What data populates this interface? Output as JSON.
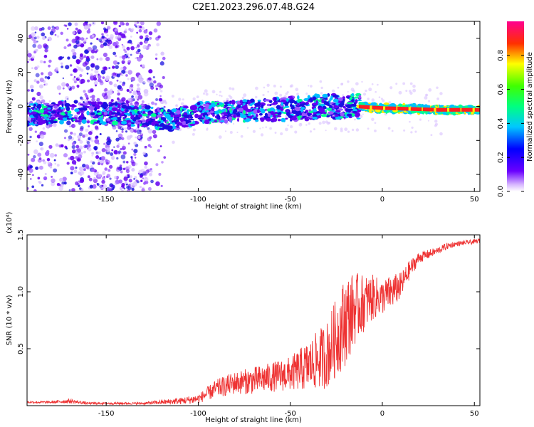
{
  "title": "C2E1.2023.296.07.48.G24",
  "chart_data": [
    {
      "type": "heatmap",
      "xlabel": "Height of straight line (km)",
      "ylabel": "Frequency (Hz)",
      "xlim": [
        -193,
        53
      ],
      "ylim": [
        -50,
        50
      ],
      "x_ticks": [
        -150,
        -100,
        -50,
        0,
        50
      ],
      "y_ticks": [
        -40,
        -20,
        0,
        20,
        40
      ],
      "colorbar": {
        "label": "Normalized spectral amplitude",
        "range": [
          0,
          1
        ],
        "ticks": [
          "0.0",
          "0.2",
          "0.4",
          "0.6",
          "0.8"
        ],
        "colors": [
          "#ffffff",
          "#5a00ff",
          "#0000ff",
          "#00ffff",
          "#00ff00",
          "#ffff00",
          "#ff0000",
          "#ff0080"
        ]
      },
      "ridge": [
        {
          "x": -193,
          "f": -5
        },
        {
          "x": -170,
          "f": -3
        },
        {
          "x": -150,
          "f": -4
        },
        {
          "x": -130,
          "f": -6
        },
        {
          "x": -115,
          "f": -8
        },
        {
          "x": -100,
          "f": -4
        },
        {
          "x": -60,
          "f": -2
        },
        {
          "x": -30,
          "f": 0
        },
        {
          "x": -15,
          "f": 0
        },
        {
          "x": 0,
          "f": -1
        },
        {
          "x": 30,
          "f": -2
        },
        {
          "x": 53,
          "f": -2
        }
      ],
      "scatter_region": {
        "x_from": -193,
        "x_to": -118
      }
    },
    {
      "type": "line",
      "xlabel": "Height of straight line (km)",
      "ylabel": "SNR (10 * v/v)",
      "y_multiplier": "(x10⁴)",
      "xlim": [
        -193,
        53
      ],
      "ylim": [
        0,
        1.5
      ],
      "x_ticks": [
        -150,
        -100,
        -50,
        0,
        50
      ],
      "y_ticks": [
        "0.5",
        "1.0",
        "1.5"
      ],
      "y_tick_values": [
        0.5,
        1.0,
        1.5
      ],
      "line_color": "#ee3333",
      "series": [
        {
          "x": [
            -193,
            -180,
            -170,
            -160,
            -150,
            -140,
            -130,
            -120,
            -110,
            -100,
            -90,
            -80,
            -70,
            -60,
            -50,
            -40,
            -30,
            -25,
            -20,
            -15,
            -10,
            -5,
            0,
            5,
            10,
            15,
            20,
            25,
            30,
            35,
            40,
            45,
            50,
            53
          ],
          "values": [
            0.03,
            0.03,
            0.04,
            0.02,
            0.02,
            0.02,
            0.02,
            0.03,
            0.04,
            0.06,
            0.15,
            0.2,
            0.22,
            0.25,
            0.28,
            0.35,
            0.45,
            0.6,
            0.75,
            0.85,
            0.9,
            0.95,
            0.95,
            1.0,
            1.05,
            1.2,
            1.3,
            1.33,
            1.36,
            1.4,
            1.42,
            1.43,
            1.44,
            1.45
          ],
          "noise": [
            0.01,
            0.01,
            0.02,
            0.01,
            0.01,
            0.01,
            0.01,
            0.02,
            0.03,
            0.04,
            0.08,
            0.1,
            0.12,
            0.13,
            0.15,
            0.22,
            0.3,
            0.35,
            0.4,
            0.32,
            0.25,
            0.2,
            0.15,
            0.15,
            0.12,
            0.08,
            0.05,
            0.04,
            0.03,
            0.03,
            0.02,
            0.02,
            0.02,
            0.02
          ]
        }
      ]
    }
  ]
}
